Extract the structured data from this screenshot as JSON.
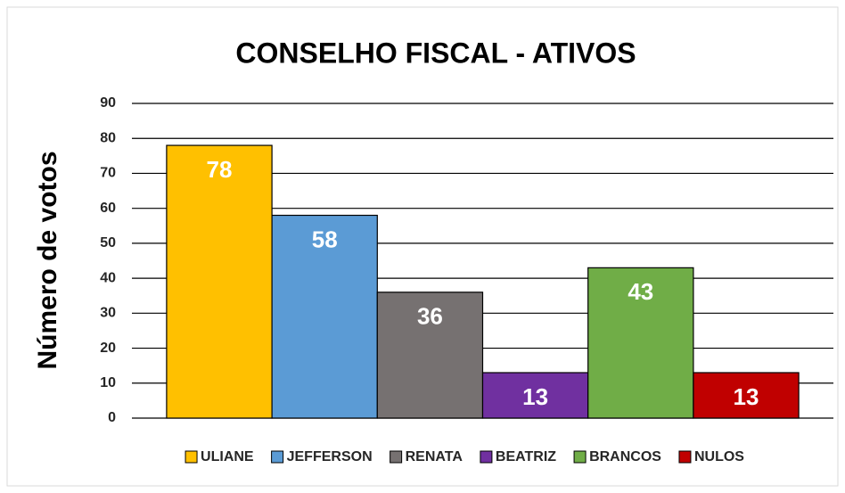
{
  "chart_data": {
    "type": "bar",
    "title": "CONSELHO FISCAL - ATIVOS",
    "y_label": "Número de votos",
    "categories": [
      "ULIANE",
      "JEFFERSON",
      "RENATA",
      "BEATRIZ",
      "BRANCOS",
      "NULOS"
    ],
    "values": [
      78,
      58,
      36,
      13,
      43,
      13
    ],
    "colors": [
      "#FFC000",
      "#5B9BD5",
      "#767171",
      "#7030A0",
      "#70AD47",
      "#C00000"
    ],
    "ylim": [
      0,
      90
    ],
    "yticks": [
      0,
      10,
      20,
      30,
      40,
      50,
      60,
      70,
      80,
      90
    ],
    "grid": true,
    "legend": "bottom"
  }
}
